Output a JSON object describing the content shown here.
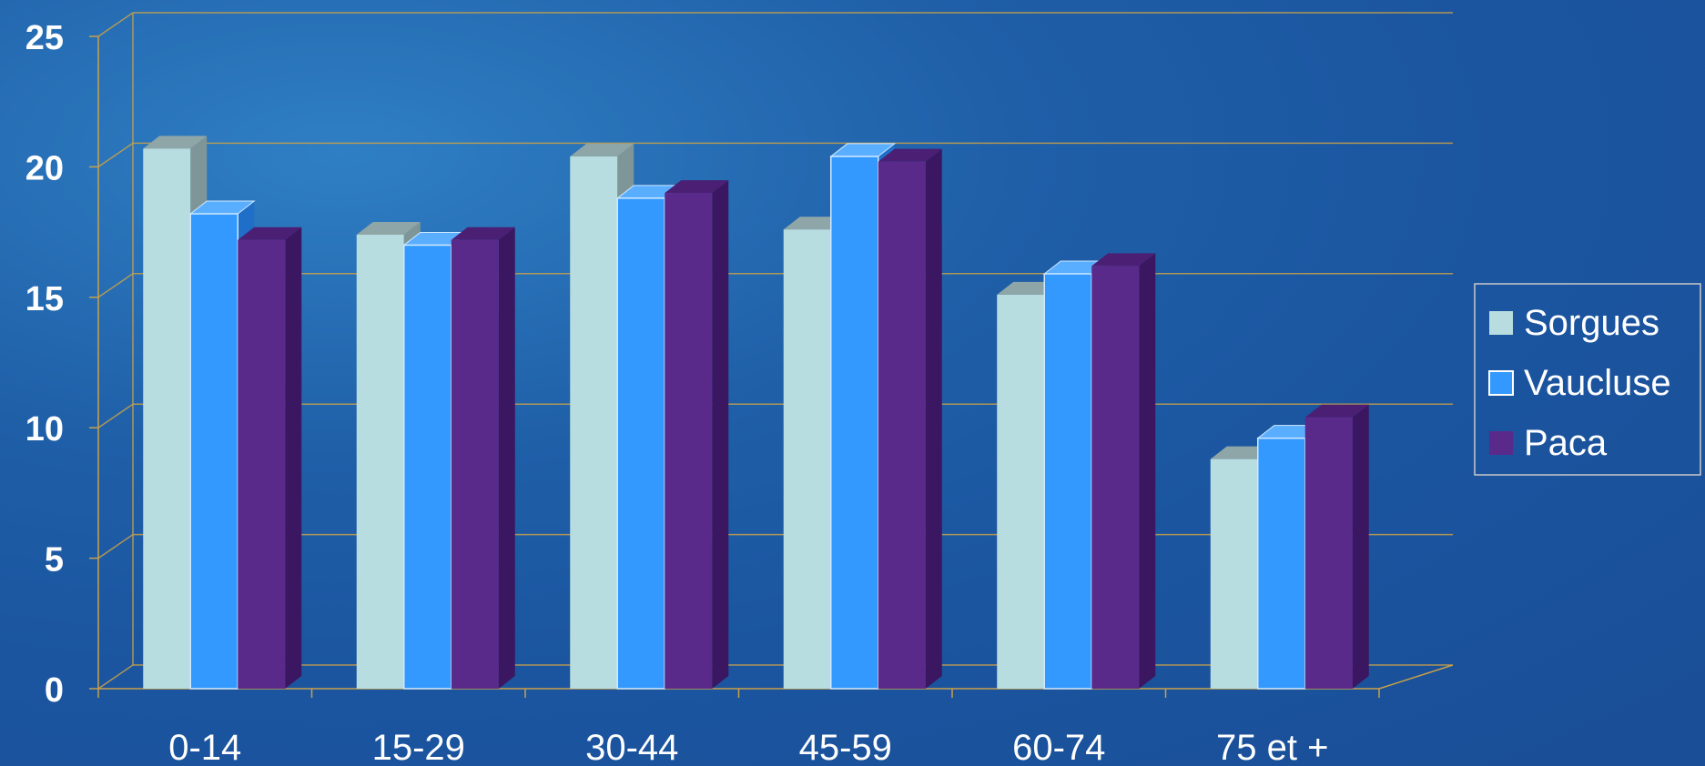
{
  "chart_data": {
    "type": "bar",
    "categories": [
      "0-14",
      "15-29",
      "30-44",
      "45-59",
      "60-74",
      "75 et +"
    ],
    "series": [
      {
        "name": "Sorgues",
        "values": [
          20.7,
          17.4,
          20.4,
          17.6,
          15.1,
          8.8
        ],
        "color": "#b8dde0",
        "top": "#8fa6a8",
        "side": "#7f9698"
      },
      {
        "name": "Vaucluse",
        "values": [
          18.2,
          17.0,
          18.8,
          20.4,
          15.9,
          9.6
        ],
        "color": "#3399ff",
        "top": "#5aaeff",
        "side": "#1f6fc9"
      },
      {
        "name": "Paca",
        "values": [
          17.2,
          17.2,
          19.0,
          20.2,
          16.2,
          10.4
        ],
        "color": "#5a2a8a",
        "top": "#4a1f74",
        "side": "#3a1760"
      }
    ],
    "yticks": [
      0,
      5,
      10,
      15,
      20,
      25
    ],
    "ylim": [
      0,
      25
    ],
    "grid": true,
    "legend_position": "right",
    "title": "",
    "xlabel": "",
    "ylabel": ""
  }
}
